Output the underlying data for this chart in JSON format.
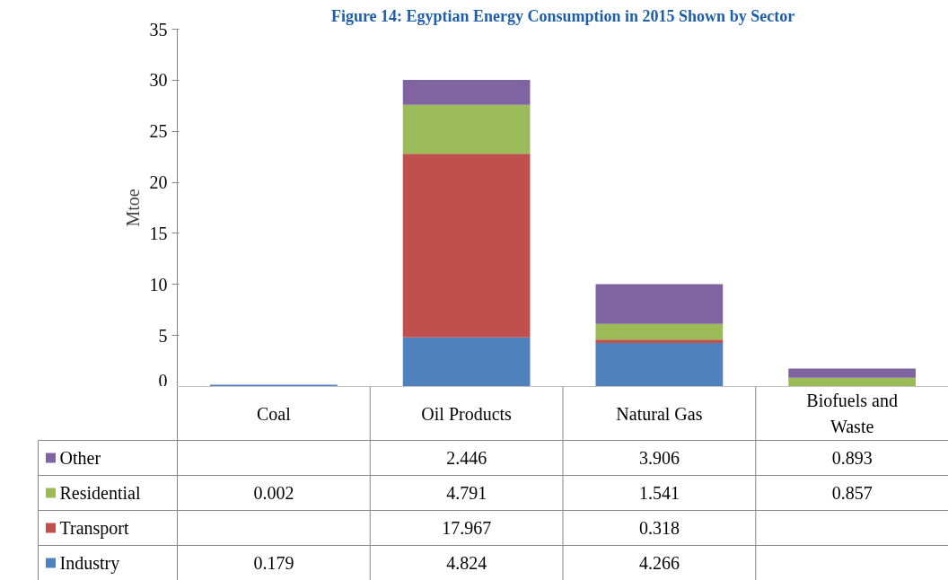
{
  "chart_data": {
    "type": "bar",
    "stacked": true,
    "title": "Figure 14: Egyptian Energy Consumption in 2015 Shown by Sector",
    "ylabel": "Mtoe",
    "categories": [
      "Coal",
      "Oil Products",
      "Natural Gas",
      "Biofuels and Waste"
    ],
    "series": [
      {
        "name": "Industry",
        "color": "#4f81bd",
        "values": [
          0.179,
          4.824,
          4.266,
          null
        ]
      },
      {
        "name": "Transport",
        "color": "#c0504d",
        "values": [
          null,
          17.967,
          0.318,
          null
        ]
      },
      {
        "name": "Residential",
        "color": "#9bbb59",
        "values": [
          0.002,
          4.791,
          1.541,
          0.857
        ]
      },
      {
        "name": "Other",
        "color": "#8064a2",
        "values": [
          null,
          2.446,
          3.906,
          0.893
        ]
      }
    ],
    "ylim": [
      0,
      35
    ],
    "yticks": [
      0,
      5,
      10,
      15,
      20,
      25,
      30,
      35
    ],
    "grid": false,
    "legend": "bottom",
    "data_labels": true
  }
}
